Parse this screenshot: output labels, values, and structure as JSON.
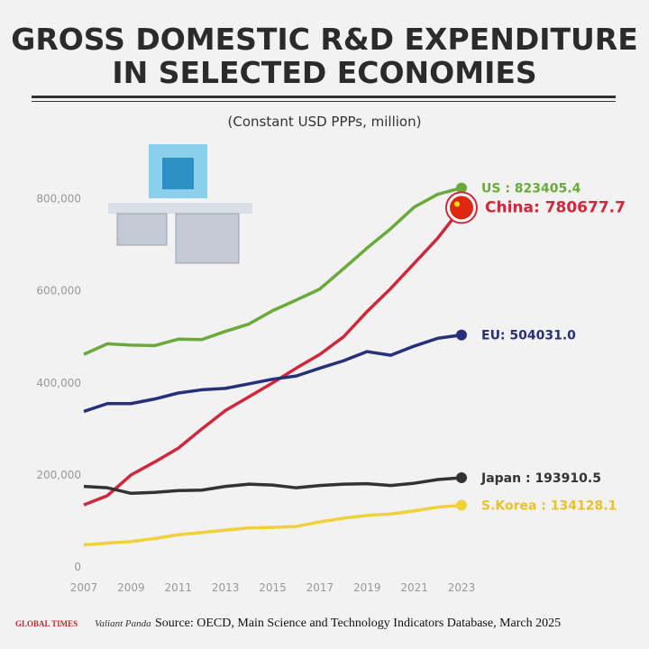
{
  "chart_data": {
    "type": "line",
    "title_lines": [
      "GROSS DOMESTIC R&D EXPENDITURE",
      "IN SELECTED ECONOMIES"
    ],
    "subtitle": "(Constant USD PPPs, million)",
    "x": [
      2007,
      2008,
      2009,
      2010,
      2011,
      2012,
      2013,
      2014,
      2015,
      2016,
      2017,
      2018,
      2019,
      2020,
      2021,
      2022,
      2023
    ],
    "xlim": [
      2007,
      2023
    ],
    "xticks": [
      2007,
      2009,
      2011,
      2013,
      2015,
      2017,
      2019,
      2021,
      2023
    ],
    "ylim": [
      0,
      850000
    ],
    "yticks": [
      0,
      {
        "value": 200000,
        "label": "200,000"
      },
      {
        "value": 400000,
        "label": "400,000"
      },
      {
        "value": 600000,
        "label": "600,000"
      },
      {
        "value": 800000,
        "label": "800,000"
      }
    ],
    "series": [
      {
        "name": "US",
        "color": "#6aaa3a",
        "values": [
          462000,
          485000,
          482000,
          481000,
          495000,
          494000,
          512000,
          528000,
          557000,
          580000,
          604000,
          648000,
          693000,
          735000,
          782000,
          810000,
          823405.4
        ],
        "value_labels": [
          null,
          null,
          null,
          null,
          null,
          null,
          null,
          null,
          null,
          null,
          null,
          null,
          null,
          null,
          null,
          null,
          "US : 823405.4"
        ]
      },
      {
        "name": "China",
        "color": "#d0283a",
        "values": [
          135000,
          155000,
          200000,
          228000,
          258000,
          300000,
          340000,
          370000,
          400000,
          432000,
          462000,
          500000,
          555000,
          605000,
          660000,
          715000,
          780677.7
        ],
        "value_labels": [
          null,
          null,
          null,
          null,
          null,
          null,
          null,
          null,
          null,
          null,
          null,
          null,
          null,
          null,
          null,
          null,
          "China: 780677.7"
        ]
      },
      {
        "name": "EU",
        "color": "#27307a",
        "values": [
          338000,
          355000,
          355000,
          365000,
          378000,
          385000,
          388000,
          398000,
          408000,
          415000,
          432000,
          448000,
          468000,
          460000,
          480000,
          497000,
          504031.0
        ],
        "value_labels": [
          null,
          null,
          null,
          null,
          null,
          null,
          null,
          null,
          null,
          null,
          null,
          null,
          null,
          null,
          null,
          null,
          "EU: 504031.0"
        ]
      },
      {
        "name": "Japan",
        "color": "#333333",
        "values": [
          175000,
          172000,
          160000,
          162000,
          166000,
          167000,
          175000,
          180000,
          178000,
          172000,
          177000,
          180000,
          181000,
          177000,
          182000,
          190000,
          193910.5
        ],
        "value_labels": [
          null,
          null,
          null,
          null,
          null,
          null,
          null,
          null,
          null,
          null,
          null,
          null,
          null,
          null,
          null,
          null,
          "Japan : 193910.5"
        ]
      },
      {
        "name": "S.Korea",
        "color": "#f0d13a",
        "values": [
          48000,
          52000,
          55000,
          62000,
          70000,
          75000,
          80000,
          85000,
          86000,
          88000,
          98000,
          106000,
          112000,
          115000,
          122000,
          130000,
          134128.1
        ],
        "value_labels": [
          null,
          null,
          null,
          null,
          null,
          null,
          null,
          null,
          null,
          null,
          null,
          null,
          null,
          null,
          null,
          null,
          "S.Korea : 134128.1"
        ]
      }
    ],
    "logos": [
      "GLOBAL TIMES",
      "Valiant Panda"
    ],
    "source": "Source: OECD, Main Science and Technology Indicators Database, March 2025"
  }
}
